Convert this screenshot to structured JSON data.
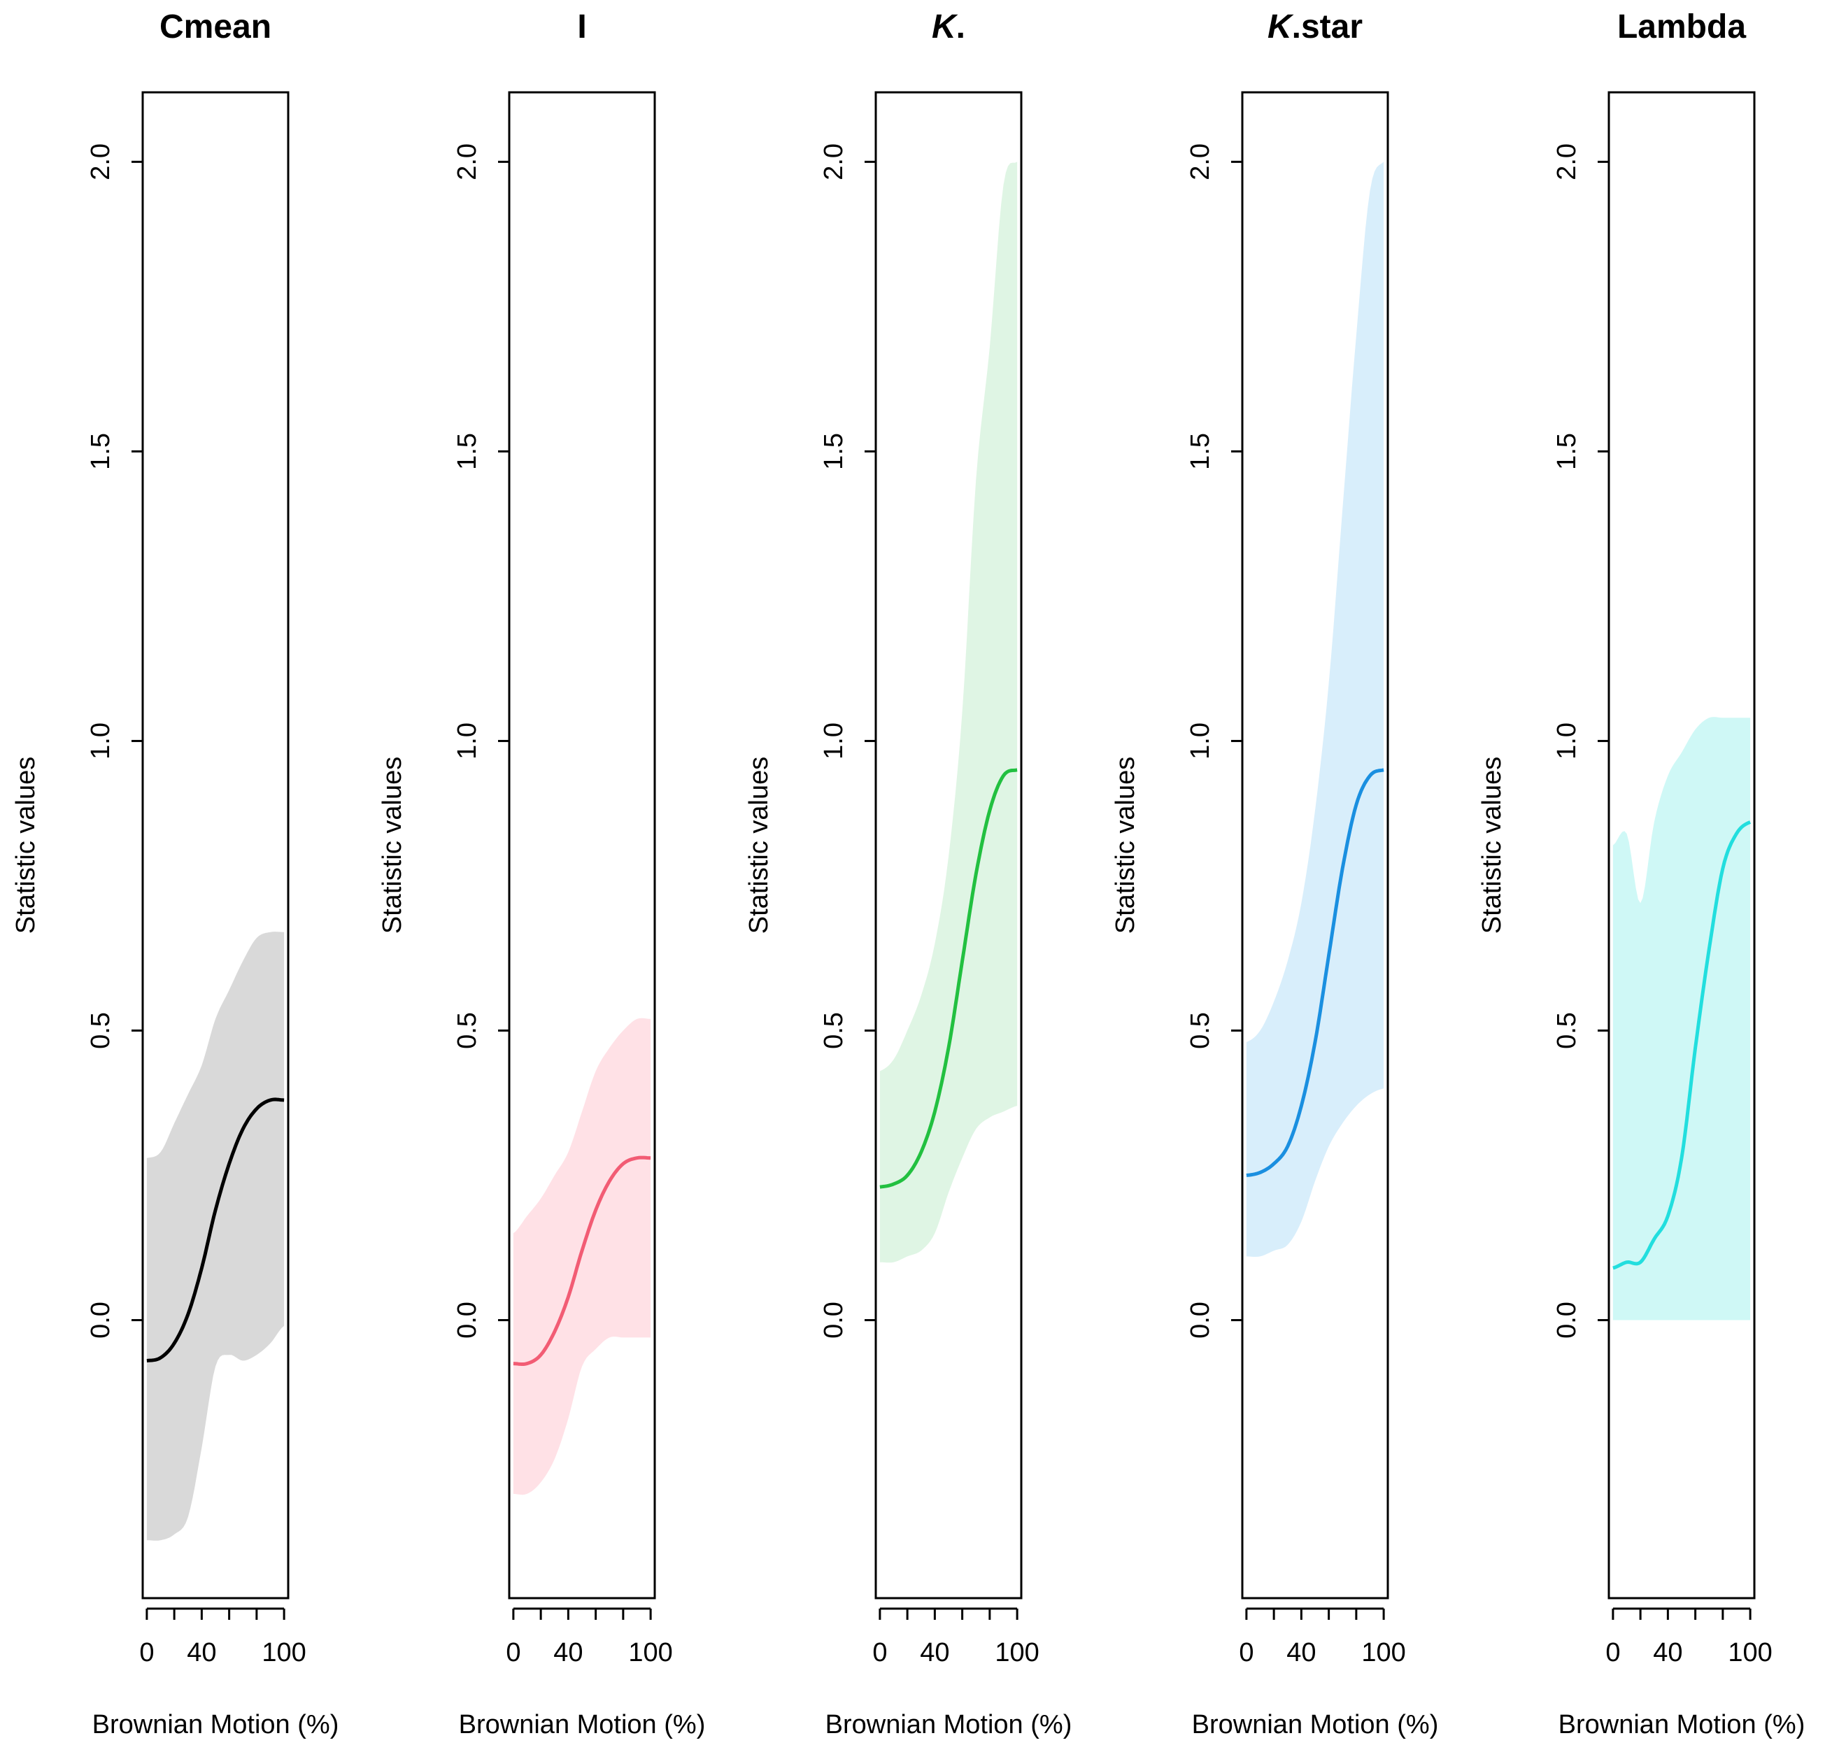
{
  "chart_data": [
    {
      "type": "line",
      "title": "Cmean",
      "title_italic_part": "",
      "xlabel": "Brownian Motion (%)",
      "ylabel": "Statistic values",
      "xlim": [
        -3,
        103
      ],
      "ylim": [
        -0.48,
        2.12
      ],
      "xticks": [
        0,
        20,
        40,
        60,
        80,
        100
      ],
      "xtick_labels": [
        "0",
        "",
        "40",
        "",
        "",
        "100"
      ],
      "yticks": [
        0.0,
        0.5,
        1.0,
        1.5,
        2.0
      ],
      "ytick_labels": [
        "0.0",
        "0.5",
        "1.0",
        "1.5",
        "2.0"
      ],
      "line_color": "#000000",
      "band_color": "#d9d9d9",
      "x": [
        0,
        10,
        20,
        30,
        40,
        50,
        60,
        70,
        80,
        90,
        100
      ],
      "mean": [
        -0.07,
        -0.065,
        -0.04,
        0.01,
        0.09,
        0.19,
        0.27,
        0.33,
        0.365,
        0.38,
        0.38
      ],
      "upper": [
        0.28,
        0.29,
        0.34,
        0.39,
        0.44,
        0.52,
        0.57,
        0.62,
        0.66,
        0.67,
        0.67
      ],
      "lower": [
        -0.38,
        -0.38,
        -0.37,
        -0.34,
        -0.22,
        -0.08,
        -0.06,
        -0.07,
        -0.06,
        -0.04,
        -0.01
      ]
    },
    {
      "type": "line",
      "title": "I",
      "title_italic_part": "",
      "xlabel": "Brownian Motion (%)",
      "ylabel": "Statistic values",
      "xlim": [
        -3,
        103
      ],
      "ylim": [
        -0.48,
        2.12
      ],
      "xticks": [
        0,
        20,
        40,
        60,
        80,
        100
      ],
      "xtick_labels": [
        "0",
        "",
        "40",
        "",
        "",
        "100"
      ],
      "yticks": [
        0.0,
        0.5,
        1.0,
        1.5,
        2.0
      ],
      "ytick_labels": [
        "0.0",
        "0.5",
        "1.0",
        "1.5",
        "2.0"
      ],
      "line_color": "#f25c74",
      "band_color": "#ffe1e6",
      "x": [
        0,
        10,
        20,
        30,
        40,
        50,
        60,
        70,
        80,
        90,
        100
      ],
      "mean": [
        -0.075,
        -0.075,
        -0.06,
        -0.02,
        0.04,
        0.12,
        0.19,
        0.24,
        0.27,
        0.28,
        0.28
      ],
      "upper": [
        0.15,
        0.18,
        0.21,
        0.25,
        0.29,
        0.36,
        0.43,
        0.47,
        0.5,
        0.52,
        0.52
      ],
      "lower": [
        -0.3,
        -0.3,
        -0.28,
        -0.24,
        -0.17,
        -0.08,
        -0.05,
        -0.03,
        -0.03,
        -0.03,
        -0.03
      ]
    },
    {
      "type": "line",
      "title": ".",
      "title_italic_part": "K",
      "xlabel": "Brownian Motion (%)",
      "ylabel": "Statistic values",
      "xlim": [
        -3,
        103
      ],
      "ylim": [
        -0.48,
        2.12
      ],
      "xticks": [
        0,
        20,
        40,
        60,
        80,
        100
      ],
      "xtick_labels": [
        "0",
        "",
        "40",
        "",
        "",
        "100"
      ],
      "yticks": [
        0.0,
        0.5,
        1.0,
        1.5,
        2.0
      ],
      "ytick_labels": [
        "0.0",
        "0.5",
        "1.0",
        "1.5",
        "2.0"
      ],
      "line_color": "#22c040",
      "band_color": "#dff5e4",
      "x": [
        0,
        10,
        20,
        30,
        40,
        50,
        60,
        70,
        80,
        90,
        100
      ],
      "mean": [
        0.23,
        0.235,
        0.25,
        0.29,
        0.36,
        0.47,
        0.62,
        0.77,
        0.88,
        0.94,
        0.95
      ],
      "upper": [
        0.43,
        0.45,
        0.5,
        0.56,
        0.65,
        0.8,
        1.05,
        1.45,
        1.68,
        1.96,
        2.0
      ],
      "lower": [
        0.1,
        0.1,
        0.11,
        0.12,
        0.15,
        0.22,
        0.28,
        0.33,
        0.35,
        0.36,
        0.37
      ]
    },
    {
      "type": "line",
      "title": ".star",
      "title_italic_part": "K",
      "xlabel": "Brownian Motion (%)",
      "ylabel": "Statistic values",
      "xlim": [
        -3,
        103
      ],
      "ylim": [
        -0.48,
        2.12
      ],
      "xticks": [
        0,
        20,
        40,
        60,
        80,
        100
      ],
      "xtick_labels": [
        "0",
        "",
        "40",
        "",
        "",
        "100"
      ],
      "yticks": [
        0.0,
        0.5,
        1.0,
        1.5,
        2.0
      ],
      "ytick_labels": [
        "0.0",
        "0.5",
        "1.0",
        "1.5",
        "2.0"
      ],
      "line_color": "#1a8fe0",
      "band_color": "#d8eefb",
      "x": [
        0,
        10,
        20,
        30,
        40,
        50,
        60,
        70,
        80,
        90,
        100
      ],
      "mean": [
        0.25,
        0.255,
        0.27,
        0.3,
        0.37,
        0.48,
        0.63,
        0.78,
        0.89,
        0.94,
        0.95
      ],
      "upper": [
        0.48,
        0.5,
        0.55,
        0.62,
        0.72,
        0.88,
        1.1,
        1.4,
        1.7,
        1.95,
        2.0
      ],
      "lower": [
        0.11,
        0.11,
        0.12,
        0.13,
        0.17,
        0.24,
        0.3,
        0.34,
        0.37,
        0.39,
        0.4
      ]
    },
    {
      "type": "line",
      "title": "Lambda",
      "title_italic_part": "",
      "xlabel": "Brownian Motion (%)",
      "ylabel": "Statistic values",
      "xlim": [
        -3,
        103
      ],
      "ylim": [
        -0.48,
        2.12
      ],
      "xticks": [
        0,
        20,
        40,
        60,
        80,
        100
      ],
      "xtick_labels": [
        "0",
        "",
        "40",
        "",
        "",
        "100"
      ],
      "yticks": [
        0.0,
        0.5,
        1.0,
        1.5,
        2.0
      ],
      "ytick_labels": [
        "0.0",
        "0.5",
        "1.0",
        "1.5",
        "2.0"
      ],
      "line_color": "#22dede",
      "band_color": "#cff8f6",
      "x": [
        0,
        10,
        20,
        30,
        40,
        50,
        60,
        70,
        80,
        90,
        100
      ],
      "mean": [
        0.09,
        0.1,
        0.1,
        0.14,
        0.18,
        0.28,
        0.47,
        0.64,
        0.78,
        0.84,
        0.86
      ],
      "upper": [
        0.82,
        0.84,
        0.72,
        0.86,
        0.94,
        0.98,
        1.02,
        1.04,
        1.04,
        1.04,
        1.04
      ],
      "lower": [
        0.0,
        0.0,
        0.0,
        0.0,
        0.0,
        0.0,
        0.0,
        0.0,
        0.0,
        0.0,
        0.0
      ]
    }
  ]
}
